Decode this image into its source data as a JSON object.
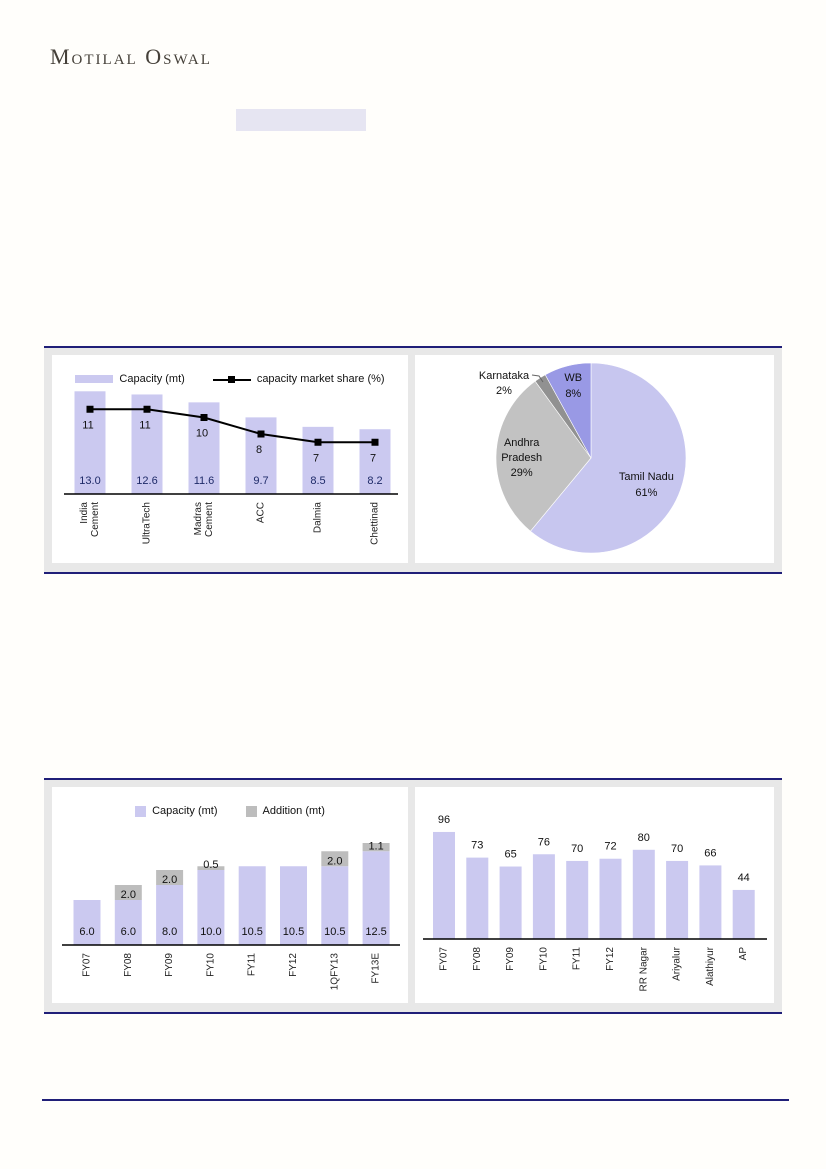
{
  "brand": "Motilal Oswal",
  "theme": {
    "rule_navy": "#201f78",
    "box_background": "#e8e8e8",
    "panel_background": "#ffffff",
    "bar_lavender": "#cbc9f0",
    "addition_gray": "#bdbdbd",
    "value_label_navy": "#1e2a68",
    "highlight_lavender": "#e6e5f2"
  },
  "chart_data": [
    {
      "type": "bar",
      "subtype": "bar-line-combo",
      "legend_position": "top",
      "categories": [
        "India Cement",
        "UltraTech",
        "Madras Cement",
        "ACC",
        "Dalmia",
        "Chettinad"
      ],
      "series": [
        {
          "name": "Capacity (mt)",
          "chart": "bar",
          "values": [
            13.0,
            12.6,
            11.6,
            9.7,
            8.5,
            8.2
          ],
          "labels": [
            "13.0",
            "12.6",
            "11.6",
            "9.7",
            "8.5",
            "8.2"
          ],
          "color": "#cbc9f0"
        },
        {
          "name": "capacity market share (%)",
          "chart": "line",
          "values": [
            11,
            11,
            10,
            8,
            7,
            7
          ],
          "labels": [
            "11",
            "11",
            "10",
            "8",
            "7",
            "7"
          ],
          "color": "#000000"
        }
      ]
    },
    {
      "type": "pie",
      "direction": "clockwise",
      "start_angle_deg": 0,
      "slices": [
        {
          "label": "Tamil Nadu",
          "pct": "61%",
          "value": 61,
          "color": "#c7c6ef"
        },
        {
          "label": "Andhra Pradesh",
          "pct": "29%",
          "value": 29,
          "color": "#c2c2c2"
        },
        {
          "label": "Karnataka",
          "pct": "2%",
          "value": 2,
          "color": "#919191"
        },
        {
          "label": "WB",
          "pct": "8%",
          "value": 8,
          "color": "#9999e5"
        }
      ]
    },
    {
      "type": "bar",
      "subtype": "stacked",
      "legend_position": "top",
      "categories": [
        "FY07",
        "FY08",
        "FY09",
        "FY10",
        "FY11",
        "FY12",
        "1QFY13",
        "FY13E"
      ],
      "series": [
        {
          "name": "Capacity (mt)",
          "values": [
            6.0,
            6.0,
            8.0,
            10.0,
            10.5,
            10.5,
            10.5,
            12.5
          ],
          "labels": [
            "6.0",
            "6.0",
            "8.0",
            "10.0",
            "10.5",
            "10.5",
            "10.5",
            "12.5"
          ],
          "color": "#cbc9f0"
        },
        {
          "name": "Addition (mt)",
          "values": [
            0,
            2.0,
            2.0,
            0.5,
            0,
            0,
            2.0,
            1.1
          ],
          "labels": [
            "",
            "2.0",
            "2.0",
            "0.5",
            "",
            "",
            "2.0",
            "1.1"
          ],
          "color": "#bdbdbd"
        }
      ]
    },
    {
      "type": "bar",
      "categories": [
        "FY07",
        "FY08",
        "FY09",
        "FY10",
        "FY11",
        "FY12",
        "RR Nagar",
        "Ariyalur",
        "Alathiyur",
        "AP"
      ],
      "values": [
        96,
        73,
        65,
        76,
        70,
        72,
        80,
        70,
        66,
        44
      ],
      "labels": [
        "96",
        "73",
        "65",
        "76",
        "70",
        "72",
        "80",
        "70",
        "66",
        "44"
      ],
      "color": "#cbc9f0"
    }
  ]
}
